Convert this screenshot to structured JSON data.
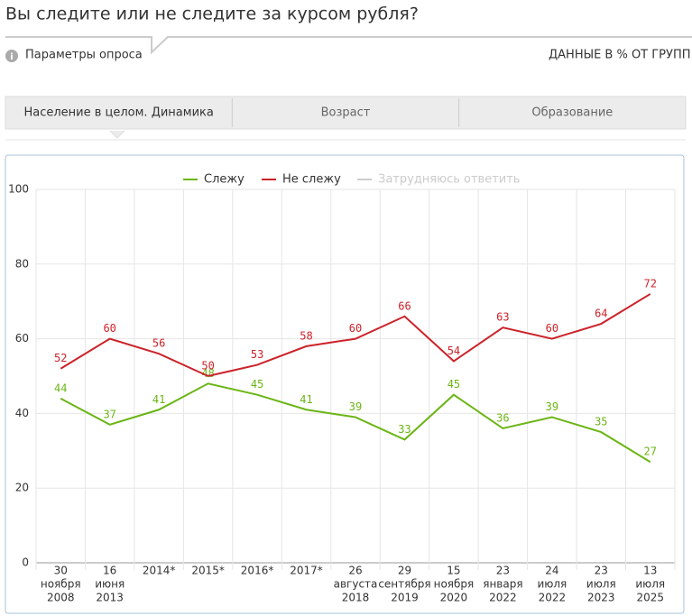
{
  "header": {
    "title": "Вы следите или не следите за курсом рубля?",
    "params": "Параметры опроса",
    "units_note": "ДАННЫЕ В % ОТ ГРУПП"
  },
  "tabs": [
    "Население в целом. Динамика",
    "Возраст",
    "Образование"
  ],
  "chart_data": {
    "type": "line",
    "categories": [
      [
        "30",
        "ноября",
        "2008"
      ],
      [
        "16",
        "июня",
        "2013"
      ],
      [
        "2014*"
      ],
      [
        "2015*"
      ],
      [
        "2016*"
      ],
      [
        "2017*"
      ],
      [
        "26",
        "августа",
        "2018"
      ],
      [
        "29",
        "сентября",
        "2019"
      ],
      [
        "15",
        "ноября",
        "2020"
      ],
      [
        "23",
        "января",
        "2022"
      ],
      [
        "24",
        "июля",
        "2022"
      ],
      [
        "23",
        "июля",
        "2023"
      ],
      [
        "13",
        "июля",
        "2025"
      ]
    ],
    "series": [
      {
        "name": "Слежу",
        "color": "#6bb515",
        "values": [
          44,
          37,
          41,
          48,
          45,
          41,
          39,
          33,
          45,
          36,
          39,
          35,
          27
        ]
      },
      {
        "name": "Не слежу",
        "color": "#cc2229",
        "values": [
          52,
          60,
          56,
          50,
          53,
          58,
          60,
          66,
          54,
          63,
          60,
          64,
          72
        ]
      }
    ],
    "inactive_legend": {
      "name": "Затрудняюсь ответить",
      "color": "#cccccc"
    },
    "ylim": [
      0,
      100
    ],
    "yticks": [
      0,
      20,
      40,
      60,
      80,
      100
    ],
    "grid": true
  }
}
